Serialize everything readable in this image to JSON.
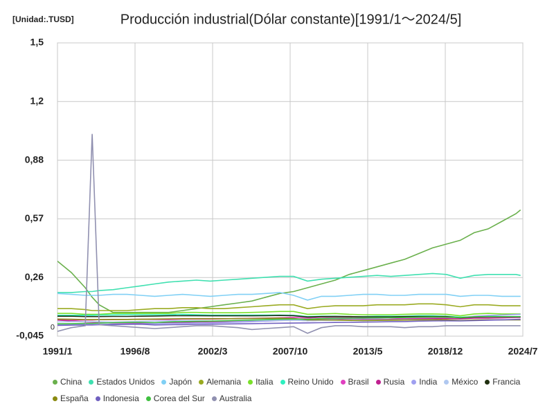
{
  "chart_data": {
    "type": "line",
    "title": "Producción industrial(Dólar constante)[1991/1～2024/5]",
    "unit_label": "[Unidad:.TUSD]",
    "x": [
      "1991/1",
      "1992/1",
      "1993/1",
      "1993/7",
      "1994/1",
      "1995/1",
      "1996/1",
      "1997/1",
      "1998/1",
      "1999/1",
      "2000/1",
      "2001/1",
      "2002/1",
      "2003/1",
      "2004/1",
      "2005/1",
      "2006/1",
      "2007/1",
      "2008/1",
      "2009/1",
      "2010/1",
      "2011/1",
      "2012/1",
      "2013/1",
      "2014/1",
      "2015/1",
      "2016/1",
      "2017/1",
      "2018/1",
      "2019/1",
      "2020/1",
      "2021/1",
      "2022/1",
      "2023/1",
      "2024/1",
      "2024/5"
    ],
    "xlim": [
      "1991/1",
      "2024/7"
    ],
    "xticks": [
      "1991/1",
      "1996/8",
      "2002/3",
      "2007/10",
      "2013/5",
      "2018/12",
      "2024/7"
    ],
    "ylim": [
      -0.045,
      1.5
    ],
    "yticks": [
      {
        "value": -0.045,
        "label": "-0,045"
      },
      0,
      {
        "value": 0.264,
        "label": "0,26"
      },
      {
        "value": 0.573,
        "label": "0,57"
      },
      {
        "value": 0.882,
        "label": "0,88"
      },
      {
        "value": 1.191,
        "label": "1,2"
      },
      {
        "value": 1.5,
        "label": "1,5"
      }
    ],
    "grid": true,
    "series": [
      {
        "name": "China",
        "color": "#6ab04c",
        "values": [
          0.35,
          0.29,
          0.21,
          0.16,
          0.12,
          0.08,
          0.08,
          0.08,
          0.08,
          0.08,
          0.09,
          0.1,
          0.11,
          0.12,
          0.13,
          0.14,
          0.16,
          0.18,
          0.19,
          0.21,
          0.23,
          0.25,
          0.28,
          0.3,
          0.32,
          0.34,
          0.36,
          0.39,
          0.42,
          0.44,
          0.46,
          0.5,
          0.52,
          0.56,
          0.6,
          0.62
        ]
      },
      {
        "name": "Estados Unidos",
        "color": "#3fe0b0",
        "values": [
          0.185,
          0.185,
          0.19,
          0.19,
          0.195,
          0.2,
          0.21,
          0.22,
          0.23,
          0.24,
          0.245,
          0.25,
          0.245,
          0.25,
          0.255,
          0.26,
          0.265,
          0.27,
          0.27,
          0.245,
          0.255,
          0.26,
          0.265,
          0.27,
          0.275,
          0.27,
          0.275,
          0.28,
          0.285,
          0.28,
          0.26,
          0.275,
          0.28,
          0.28,
          0.28,
          0.275
        ]
      },
      {
        "name": "Japón",
        "color": "#80d0f5",
        "values": [
          0.18,
          0.175,
          0.17,
          0.17,
          0.17,
          0.175,
          0.175,
          0.17,
          0.165,
          0.17,
          0.175,
          0.17,
          0.165,
          0.17,
          0.175,
          0.175,
          0.18,
          0.185,
          0.17,
          0.145,
          0.165,
          0.165,
          0.17,
          0.175,
          0.175,
          0.17,
          0.17,
          0.175,
          0.175,
          0.175,
          0.165,
          0.17,
          0.17,
          0.165,
          0.165,
          0.165
        ]
      },
      {
        "name": "Alemania",
        "color": "#9aaa20",
        "values": [
          0.1,
          0.1,
          0.095,
          0.09,
          0.09,
          0.09,
          0.09,
          0.095,
          0.1,
          0.1,
          0.105,
          0.105,
          0.1,
          0.1,
          0.105,
          0.11,
          0.115,
          0.12,
          0.12,
          0.1,
          0.11,
          0.115,
          0.115,
          0.115,
          0.12,
          0.12,
          0.12,
          0.125,
          0.125,
          0.12,
          0.11,
          0.12,
          0.12,
          0.115,
          0.115,
          0.115
        ]
      },
      {
        "name": "Italia",
        "color": "#7ae02a",
        "values": [
          0.075,
          0.075,
          0.07,
          0.07,
          0.07,
          0.075,
          0.075,
          0.075,
          0.075,
          0.075,
          0.08,
          0.08,
          0.078,
          0.078,
          0.078,
          0.08,
          0.082,
          0.085,
          0.085,
          0.07,
          0.072,
          0.074,
          0.07,
          0.068,
          0.068,
          0.068,
          0.07,
          0.072,
          0.072,
          0.07,
          0.062,
          0.072,
          0.075,
          0.072,
          0.072,
          0.072
        ]
      },
      {
        "name": "Reino Unido",
        "color": "#2ef0c0",
        "values": [
          0.065,
          0.065,
          0.065,
          0.065,
          0.066,
          0.067,
          0.068,
          0.068,
          0.068,
          0.068,
          0.07,
          0.068,
          0.066,
          0.066,
          0.066,
          0.066,
          0.066,
          0.066,
          0.065,
          0.058,
          0.06,
          0.06,
          0.058,
          0.058,
          0.06,
          0.06,
          0.06,
          0.062,
          0.062,
          0.06,
          0.055,
          0.058,
          0.06,
          0.058,
          0.058,
          0.058
        ]
      },
      {
        "name": "Brasil",
        "color": "#e040c0",
        "values": [
          0.04,
          0.038,
          0.04,
          0.04,
          0.042,
          0.042,
          0.043,
          0.044,
          0.043,
          0.042,
          0.045,
          0.045,
          0.045,
          0.046,
          0.048,
          0.049,
          0.05,
          0.052,
          0.054,
          0.05,
          0.055,
          0.055,
          0.055,
          0.056,
          0.055,
          0.05,
          0.048,
          0.05,
          0.05,
          0.05,
          0.047,
          0.052,
          0.052,
          0.052,
          0.053,
          0.053
        ]
      },
      {
        "name": "Rusia",
        "color": "#c02090",
        "values": [
          0.04,
          0.035,
          0.03,
          0.028,
          0.026,
          0.025,
          0.025,
          0.025,
          0.024,
          0.026,
          0.028,
          0.03,
          0.031,
          0.032,
          0.034,
          0.036,
          0.038,
          0.04,
          0.041,
          0.036,
          0.039,
          0.041,
          0.042,
          0.043,
          0.044,
          0.043,
          0.044,
          0.045,
          0.047,
          0.048,
          0.046,
          0.05,
          0.05,
          0.052,
          0.054,
          0.055
        ]
      },
      {
        "name": "India",
        "color": "#a0a0f0",
        "values": [
          0.015,
          0.015,
          0.016,
          0.016,
          0.017,
          0.018,
          0.019,
          0.02,
          0.021,
          0.022,
          0.023,
          0.024,
          0.025,
          0.027,
          0.029,
          0.031,
          0.034,
          0.037,
          0.039,
          0.041,
          0.044,
          0.046,
          0.048,
          0.049,
          0.05,
          0.052,
          0.054,
          0.056,
          0.058,
          0.058,
          0.052,
          0.06,
          0.064,
          0.066,
          0.069,
          0.07
        ]
      },
      {
        "name": "México",
        "color": "#b0c8f0",
        "values": [
          0.03,
          0.031,
          0.031,
          0.031,
          0.032,
          0.029,
          0.031,
          0.033,
          0.034,
          0.035,
          0.037,
          0.036,
          0.035,
          0.035,
          0.036,
          0.037,
          0.038,
          0.039,
          0.039,
          0.036,
          0.038,
          0.039,
          0.04,
          0.04,
          0.041,
          0.041,
          0.042,
          0.042,
          0.042,
          0.041,
          0.038,
          0.04,
          0.041,
          0.041,
          0.041,
          0.041
        ]
      },
      {
        "name": "Francia",
        "color": "#203010",
        "values": [
          0.06,
          0.06,
          0.058,
          0.058,
          0.058,
          0.059,
          0.059,
          0.06,
          0.061,
          0.062,
          0.063,
          0.063,
          0.062,
          0.062,
          0.062,
          0.062,
          0.063,
          0.064,
          0.063,
          0.056,
          0.058,
          0.059,
          0.058,
          0.057,
          0.057,
          0.057,
          0.058,
          0.059,
          0.059,
          0.058,
          0.052,
          0.056,
          0.057,
          0.057,
          0.057,
          0.057
        ]
      },
      {
        "name": "España",
        "color": "#8a8a10",
        "values": [
          0.045,
          0.044,
          0.042,
          0.042,
          0.042,
          0.043,
          0.043,
          0.044,
          0.045,
          0.046,
          0.047,
          0.047,
          0.047,
          0.047,
          0.048,
          0.048,
          0.049,
          0.05,
          0.048,
          0.041,
          0.041,
          0.04,
          0.038,
          0.037,
          0.038,
          0.039,
          0.04,
          0.041,
          0.041,
          0.041,
          0.037,
          0.04,
          0.041,
          0.041,
          0.041,
          0.041
        ]
      },
      {
        "name": "Indonesia",
        "color": "#7060c0",
        "values": [
          0.012,
          0.013,
          0.014,
          0.014,
          0.015,
          0.016,
          0.017,
          0.018,
          0.014,
          0.015,
          0.016,
          0.017,
          0.018,
          0.019,
          0.02,
          0.021,
          0.022,
          0.023,
          0.024,
          0.025,
          0.026,
          0.027,
          0.028,
          0.029,
          0.03,
          0.031,
          0.032,
          0.034,
          0.035,
          0.036,
          0.035,
          0.037,
          0.039,
          0.041,
          0.043,
          0.044
        ]
      },
      {
        "name": "Corea del Sur",
        "color": "#40c040",
        "values": [
          0.02,
          0.021,
          0.022,
          0.022,
          0.024,
          0.026,
          0.027,
          0.028,
          0.026,
          0.03,
          0.032,
          0.033,
          0.034,
          0.036,
          0.038,
          0.04,
          0.042,
          0.044,
          0.045,
          0.044,
          0.048,
          0.05,
          0.05,
          0.051,
          0.052,
          0.052,
          0.053,
          0.055,
          0.056,
          0.055,
          0.053,
          0.057,
          0.058,
          0.057,
          0.057,
          0.057
        ]
      },
      {
        "name": "Australia",
        "color": "#9090b0",
        "values": [
          -0.02,
          0.0,
          0.01,
          1.02,
          0.015,
          0.01,
          0.005,
          0.0,
          -0.005,
          0.0,
          0.005,
          0.01,
          0.01,
          0.005,
          0.0,
          -0.01,
          -0.005,
          0.0,
          0.005,
          -0.03,
          0.0,
          0.01,
          0.01,
          0.005,
          0.005,
          0.005,
          0.0,
          0.005,
          0.005,
          0.01,
          0.01,
          0.01,
          0.01,
          0.01,
          0.01,
          0.01
        ]
      }
    ]
  }
}
